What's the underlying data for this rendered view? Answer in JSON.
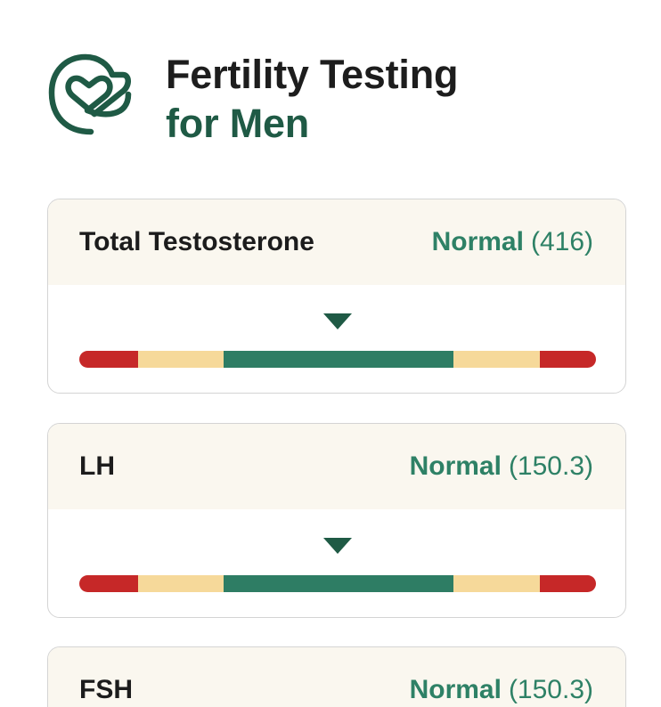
{
  "header": {
    "logo_icon": "heart-loop-logo-icon",
    "title_line1": "Fertility Testing",
    "title_line2": "for Men"
  },
  "colors": {
    "brand_dark_green": "#1f5a45",
    "status_green": "#2e8166",
    "range_red": "#c62828",
    "range_yellow": "#f6d99a",
    "range_green": "#2e7d64",
    "card_header_bg": "#faf7ef"
  },
  "range_segments": [
    {
      "color": "red",
      "fraction": 0.114
    },
    {
      "color": "yellow",
      "fraction": 0.166
    },
    {
      "color": "green",
      "fraction": 0.445
    },
    {
      "color": "yellow",
      "fraction": 0.166
    },
    {
      "color": "red",
      "fraction": 0.109
    }
  ],
  "tests": [
    {
      "name": "Total Testosterone",
      "status": "Normal",
      "value": "(416)",
      "marker_fraction": 0.5
    },
    {
      "name": "LH",
      "status": "Normal",
      "value": "(150.3)",
      "marker_fraction": 0.5
    },
    {
      "name": "FSH",
      "status": "Normal",
      "value": "(150.3)",
      "marker_fraction": 0.5
    }
  ]
}
